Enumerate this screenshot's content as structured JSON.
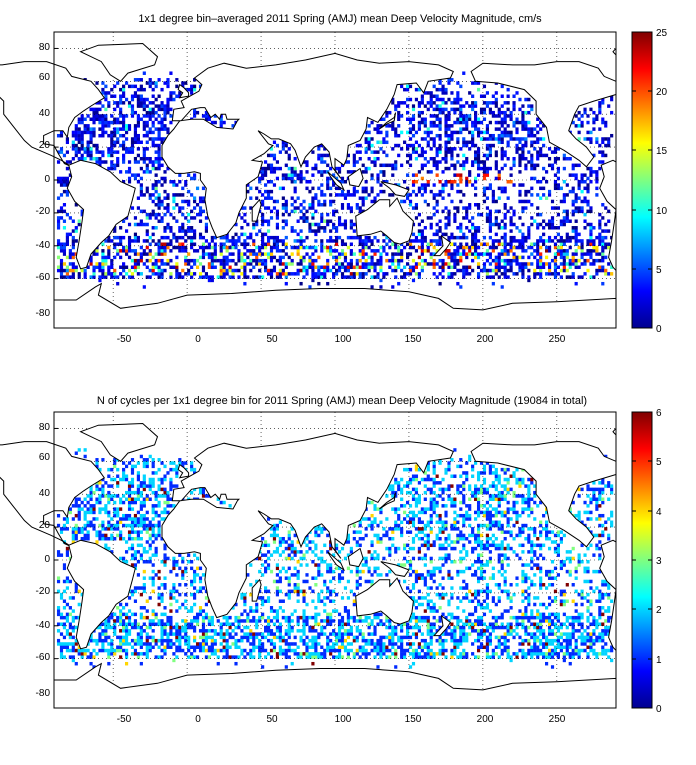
{
  "panels": [
    {
      "title": "1x1 degree bin–averaged 2011 Spring (AMJ) mean Deep Velocity Magnitude, cm/s",
      "x_ticks": [
        "-50",
        "0",
        "50",
        "100",
        "150",
        "200",
        "250"
      ],
      "y_ticks": [
        "80",
        "60",
        "40",
        "20",
        "0",
        "-20",
        "-40",
        "-60",
        "-80"
      ],
      "colorbar_ticks": [
        "25",
        "20",
        "15",
        "10",
        "5",
        "0"
      ],
      "colorbar_range": [
        0,
        25
      ],
      "map_extent": {
        "lon": [
          -90,
          290
        ],
        "lat": [
          -90,
          90
        ]
      },
      "palette": "jet",
      "dominant_color": "#0030ff"
    },
    {
      "title": "N of cycles per 1x1 degree bin for 2011 Spring (AMJ) mean Deep Velocity Magnitude (19084 in total)",
      "x_ticks": [
        "-50",
        "0",
        "50",
        "100",
        "150",
        "200",
        "250"
      ],
      "y_ticks": [
        "80",
        "60",
        "40",
        "20",
        "0",
        "-20",
        "-40",
        "-60",
        "-80"
      ],
      "colorbar_ticks": [
        "6",
        "5",
        "4",
        "3",
        "2",
        "1",
        "0"
      ],
      "colorbar_range": [
        0,
        6
      ],
      "map_extent": {
        "lon": [
          -90,
          290
        ],
        "lat": [
          -90,
          90
        ]
      },
      "palette": "jet",
      "dominant_color": "#00a0ff"
    }
  ]
}
